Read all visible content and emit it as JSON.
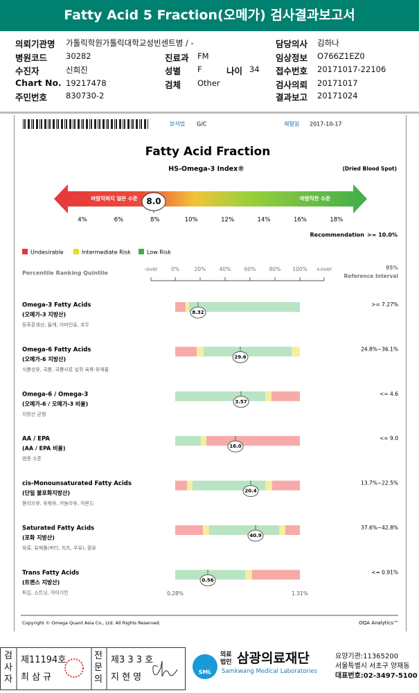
{
  "header": {
    "title": "Fatty Acid 5 Fraction(오메가) 검사결과보고서"
  },
  "info": [
    {
      "label": "의뢰기관명",
      "value": "가톨릭학원가톨릭대학교성빈센트병 / -"
    },
    {
      "label": "담당의사",
      "value": "김하나"
    },
    {
      "label": "병원코드",
      "value": "30282"
    },
    {
      "label": "진료과",
      "value": "FM"
    },
    {
      "label": "임상정보",
      "value": "O766Z1EZ0"
    },
    {
      "label": "수진자",
      "value": "신희진"
    },
    {
      "label": "성별",
      "value": "F"
    },
    {
      "label": "나이",
      "value": "34"
    },
    {
      "label": "접수번호",
      "value": "20171017-22106"
    },
    {
      "label": "Chart No.",
      "value": "19217478"
    },
    {
      "label": "검체",
      "value": "Other"
    },
    {
      "label": "검사의뢰",
      "value": "20171017"
    },
    {
      "label": "주민번호",
      "value": "830730-2"
    },
    {
      "label": "결과보고",
      "value": "20171024"
    }
  ],
  "report": {
    "method_label": "분석법",
    "method": "G/C",
    "draw_label": "채혈일",
    "draw_date": "2017-10-17",
    "title": "Fatty Acid Fraction",
    "index_name": "HS-Omega-3 Index®",
    "specimen": "(Dried Blood Spot)",
    "bad_label": "바람직하지 않은 수준",
    "good_label": "바람직한 수준",
    "index_value": "8.0",
    "index_ticks": [
      "4%",
      "6%",
      "8%",
      "10%",
      "12%",
      "14%",
      "16%",
      "18%"
    ],
    "recommendation_label": "Recommendation",
    "recommendation": ">= 10.0%",
    "legend": [
      "Undesirable",
      "Intermediate Risk",
      "Low Risk"
    ],
    "quintile_title": "Percentile Ranking Quintile",
    "quintile_ticks": [
      "-over",
      "0%",
      "20%",
      "40%",
      "60%",
      "80%",
      "100%",
      "+over"
    ],
    "ref_title": "95%",
    "ref_subtitle": "Reference Interval",
    "items": [
      {
        "name": "Omega-3 Fatty Acids",
        "korean": "(오메가-3 지방산)",
        "foods": "등푸른생선, 들깨, 아마인유, 호두",
        "value": "8.32",
        "reference": ">= 7.27%"
      },
      {
        "name": "Omega-6 Fatty Acids",
        "korean": "(오메가-6 지방산)",
        "foods": "식물성유, 곡물, 곡물사료 섭취 육류·유제품",
        "value": "29.6",
        "reference": "24.8%~36.1%"
      },
      {
        "name": "Omega-6 / Omega-3",
        "korean": "(오메가-6 / 오메가-3 비율)",
        "foods": "지방산 균형",
        "value": "3.57",
        "reference": "<= 4.6"
      },
      {
        "name": "AA / EPA",
        "korean": "(AA / EPA 비율)",
        "foods": "염증 수준",
        "value": "16.0",
        "reference": "<= 9.0"
      },
      {
        "name": "cis-Monounsaturated Fatty Acids",
        "korean": "(단일 불포화지방산)",
        "foods": "올리브유, 유채유, 카놀라유, 아몬드",
        "value": "20.4",
        "reference": "13.7%~22.5%"
      },
      {
        "name": "Saturated Fatty Acids",
        "korean": "(포화 지방산)",
        "foods": "육류, 유제품(버터, 치즈, 우유), 팜유",
        "value": "40.9",
        "reference": "37.6%~42.8%"
      },
      {
        "name": "Trans Fatty Acids",
        "korean": "(트랜스 지방산)",
        "foods": "튀김, 쇼트닝, 마아가린",
        "value": "0.56",
        "reference": "<= 0.91%"
      }
    ],
    "trans_low": "0.28%",
    "trans_high": "1.31%",
    "copyright": "Copyright © Omega Quant Asia Co., Ltd.  All Rights Reserved.",
    "brand": "OQA Analytics™"
  },
  "footer": {
    "tester_label": "검사자",
    "tester_no": "제11194호",
    "tester_name": "최 삼 규",
    "doctor_label": "전문의",
    "doctor_no": "제3 3 3 호",
    "doctor_name": "지 현 영",
    "logo": "SML",
    "org_type": "의료법인",
    "org_name": "삼광의료재단",
    "org_en": "Samkwang Medical Laboratories",
    "code": "요양기관:11365200",
    "address": "서울특별시 서초구 양재동",
    "phone": "대표번호:02-3497-5100"
  }
}
